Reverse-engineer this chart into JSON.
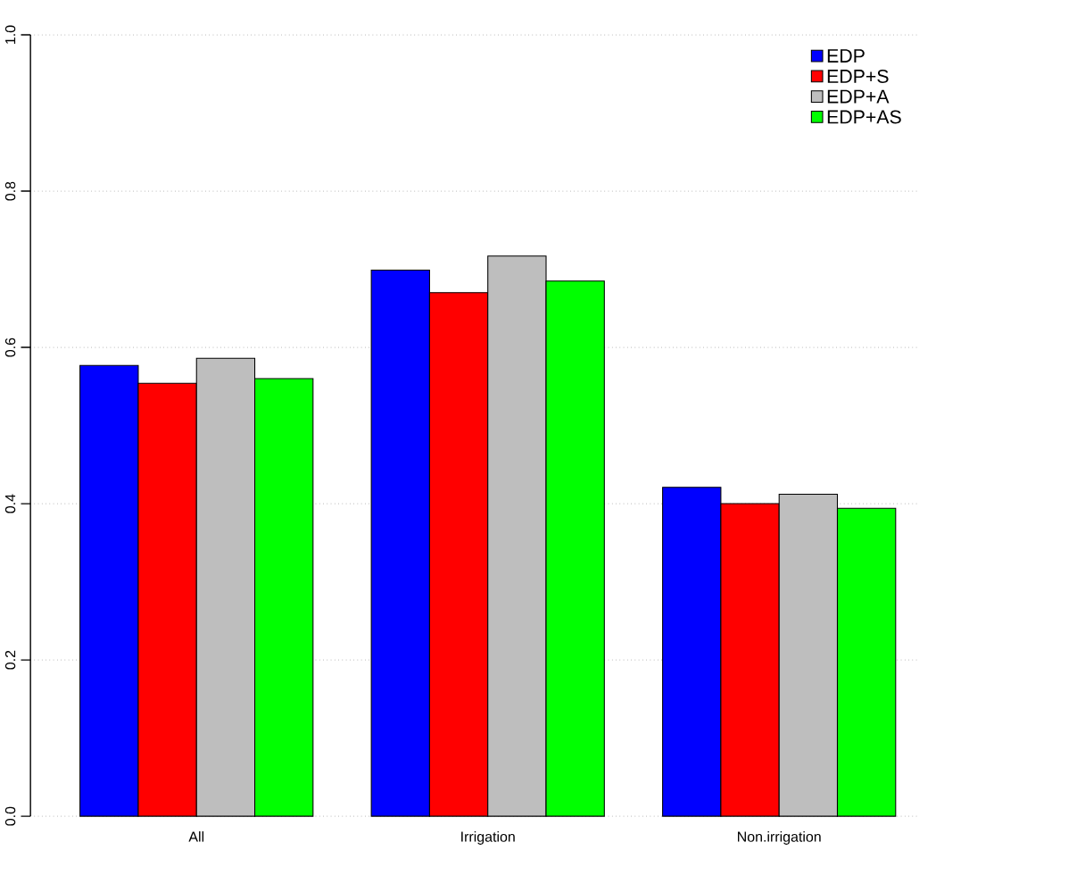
{
  "chart_data": {
    "type": "bar",
    "categories": [
      "All",
      "Irrigation",
      "Non.irrigation"
    ],
    "series": [
      {
        "name": "EDP",
        "color": "#0000ff",
        "values": [
          0.577,
          0.699,
          0.421
        ]
      },
      {
        "name": "EDP+S",
        "color": "#ff0000",
        "values": [
          0.554,
          0.67,
          0.4
        ]
      },
      {
        "name": "EDP+A",
        "color": "#bebebe",
        "values": [
          0.586,
          0.717,
          0.412
        ]
      },
      {
        "name": "EDP+AS",
        "color": "#00ff00",
        "values": [
          0.56,
          0.685,
          0.394
        ]
      }
    ],
    "ylim": [
      0,
      1
    ],
    "yticks": [
      {
        "value": 0,
        "label": "0.0"
      },
      {
        "value": 0.2,
        "label": "0.2"
      },
      {
        "value": 0.4,
        "label": "0.4"
      },
      {
        "value": 0.6,
        "label": "0.6"
      },
      {
        "value": 0.8,
        "label": "0.8"
      },
      {
        "value": 1,
        "label": "1.0"
      }
    ],
    "grid": "y",
    "legend": "top right"
  }
}
